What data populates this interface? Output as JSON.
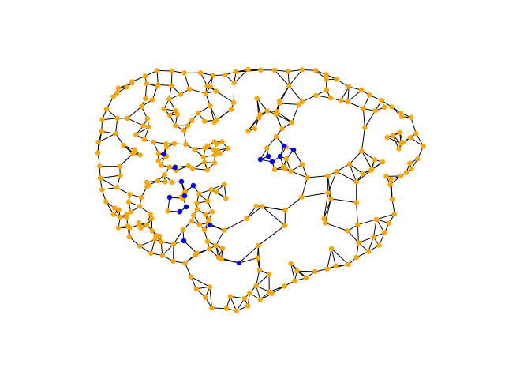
{
  "diagram": {
    "type": "network-graph",
    "node_colors": {
      "default": "#ffa500",
      "highlight": "#0000ff"
    },
    "edge_color": "#000000",
    "node_count_orange": 300,
    "node_count_blue": 17
  }
}
